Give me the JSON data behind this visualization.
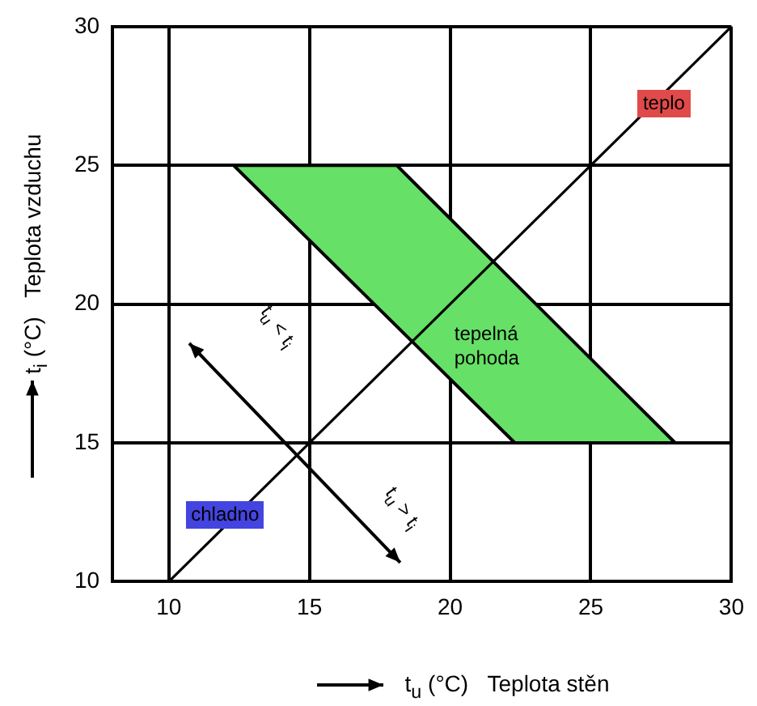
{
  "chart_data": {
    "type": "line",
    "xlabel": "t$_{u}$ (°C)   Teplota stěn",
    "ylabel": "t$_{i}$ (°C)   Teplota vzduchu",
    "series": [
      {
        "type": "line",
        "color": "#000000",
        "x": [
          10,
          30
        ],
        "values": [
          10,
          30
        ]
      },
      {
        "type": "area",
        "color": "#66e066",
        "x": [
          12.3,
          18.1,
          28,
          22.3,
          12.3
        ],
        "values": [
          25,
          25,
          15,
          15,
          25
        ]
      }
    ],
    "xlim": [
      8,
      30
    ],
    "xticks": [
      10,
      15,
      20,
      25,
      30
    ],
    "ylim": [
      10,
      30
    ],
    "yticks": [
      10,
      15,
      20,
      25,
      30
    ],
    "grid": true,
    "marker": "none",
    "line_style": "solid",
    "annotations": [
      {
        "text": "teplo",
        "x": 27.6,
        "y": 27.2
      },
      {
        "text": "chladno",
        "x": 12,
        "y": 12.4
      },
      "tepelná\npohoda",
      "t$_{u}$ < t$_{i}$",
      "t$_{u}$ > t$_{i}$"
    ]
  }
}
